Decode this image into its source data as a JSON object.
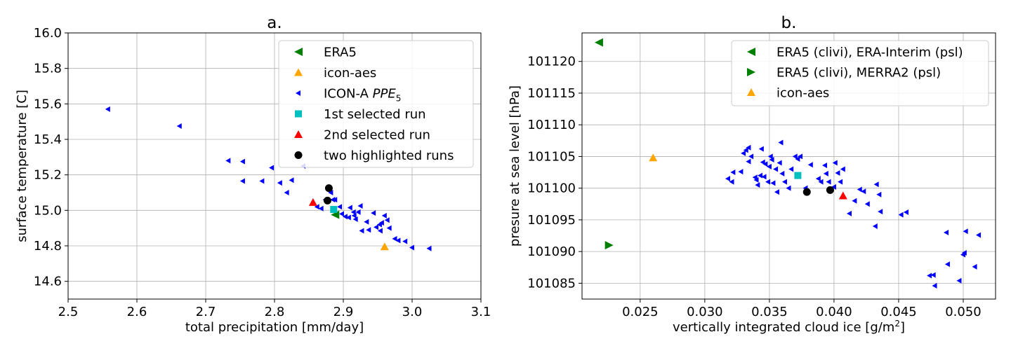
{
  "chart_data": [
    {
      "type": "scatter",
      "title": "a.",
      "xlabel": "total precipitation [mm/day]",
      "ylabel": "surface temperature [C]",
      "xlim": [
        2.5,
        3.1
      ],
      "ylim": [
        14.5,
        16.0
      ],
      "xticks": [
        "2.5",
        "2.6",
        "2.7",
        "2.8",
        "2.9",
        "3.0",
        "3.1"
      ],
      "yticks": [
        "14.6",
        "14.8",
        "15.0",
        "15.2",
        "15.4",
        "15.6",
        "15.8",
        "16.0"
      ],
      "grid": true,
      "legend_position": "upper-right",
      "series": [
        {
          "name": "ICON-A PPE",
          "name_sub": "5",
          "marker": "triangle-left-small",
          "color": "#0000ff",
          "points": [
            [
              2.558,
              15.57
            ],
            [
              2.662,
              15.475
            ],
            [
              2.733,
              15.28
            ],
            [
              2.754,
              15.275
            ],
            [
              2.754,
              15.165
            ],
            [
              2.782,
              15.165
            ],
            [
              2.796,
              15.24
            ],
            [
              2.808,
              15.155
            ],
            [
              2.818,
              15.1
            ],
            [
              2.825,
              15.17
            ],
            [
              2.842,
              15.25
            ],
            [
              2.862,
              15.02
            ],
            [
              2.868,
              15.01
            ],
            [
              2.874,
              15.06
            ],
            [
              2.882,
              15.1
            ],
            [
              2.885,
              15.06
            ],
            [
              2.888,
              15.06
            ],
            [
              2.895,
              15.02
            ],
            [
              2.898,
              14.98
            ],
            [
              2.903,
              14.965
            ],
            [
              2.908,
              14.96
            ],
            [
              2.91,
              15.015
            ],
            [
              2.915,
              14.99
            ],
            [
              2.916,
              14.97
            ],
            [
              2.918,
              14.95
            ],
            [
              2.922,
              14.99
            ],
            [
              2.925,
              15.025
            ],
            [
              2.927,
              14.885
            ],
            [
              2.934,
              14.935
            ],
            [
              2.937,
              14.89
            ],
            [
              2.944,
              14.985
            ],
            [
              2.948,
              14.905
            ],
            [
              2.953,
              14.92
            ],
            [
              2.954,
              14.885
            ],
            [
              2.956,
              14.93
            ],
            [
              2.96,
              14.97
            ],
            [
              2.964,
              14.945
            ],
            [
              2.967,
              14.9
            ],
            [
              2.975,
              14.84
            ],
            [
              2.98,
              14.83
            ],
            [
              2.99,
              14.825
            ],
            [
              3.0,
              14.79
            ],
            [
              3.025,
              14.785
            ]
          ]
        },
        {
          "name": "ERA5",
          "marker": "triangle-left",
          "color": "#008000",
          "points": [
            [
              2.888,
              14.975
            ]
          ]
        },
        {
          "name": "icon-aes",
          "marker": "triangle-up",
          "color": "#ffa500",
          "points": [
            [
              2.96,
              14.795
            ]
          ]
        },
        {
          "name": "1st selected run",
          "marker": "square",
          "color": "#00bfbf",
          "points": [
            [
              2.886,
              15.005
            ]
          ]
        },
        {
          "name": "2nd selected run",
          "marker": "triangle-up",
          "color": "#ff0000",
          "points": [
            [
              2.856,
              15.045
            ]
          ]
        },
        {
          "name": "two highlighted runs",
          "marker": "circle",
          "color": "#000000",
          "points": [
            [
              2.879,
              15.125
            ],
            [
              2.877,
              15.055
            ]
          ]
        }
      ],
      "legend_order": [
        "ERA5",
        "icon-aes",
        "ICON-A PPE",
        "1st selected run",
        "2nd selected run",
        "two highlighted runs"
      ]
    },
    {
      "type": "scatter",
      "title": "b.",
      "xlabel": "vertically integrated cloud ice [g/m",
      "xlabel_sup": "2",
      "xlabel_end": "]",
      "ylabel": "presure at sea level [hPa]",
      "xlim": [
        0.0205,
        0.0525
      ],
      "ylim": [
        101082.5,
        101124.5
      ],
      "xticks": [
        "0.025",
        "0.030",
        "0.035",
        "0.040",
        "0.045",
        "0.050"
      ],
      "xtick_values": [
        0.025,
        0.03,
        0.035,
        0.04,
        0.045,
        0.05
      ],
      "yticks": [
        "101085",
        "101090",
        "101095",
        "101100",
        "101105",
        "101110",
        "101115",
        "101120"
      ],
      "ytick_values": [
        101085,
        101090,
        101095,
        101100,
        101105,
        101110,
        101115,
        101120
      ],
      "grid": true,
      "legend_position": "upper-right",
      "series": [
        {
          "name": "ICON-A PPE5",
          "in_legend": false,
          "marker": "triangle-left-small",
          "color": "#0000ff",
          "points": [
            [
              0.0318,
              101101.5
            ],
            [
              0.0321,
              101101.0
            ],
            [
              0.0322,
              101102.5
            ],
            [
              0.0328,
              101102.6
            ],
            [
              0.033,
              101105.5
            ],
            [
              0.0332,
              101106.0
            ],
            [
              0.0334,
              101106.4
            ],
            [
              0.0334,
              101104.2
            ],
            [
              0.0336,
              101105.0
            ],
            [
              0.0339,
              101101.7
            ],
            [
              0.034,
              101101.3
            ],
            [
              0.0341,
              101100.5
            ],
            [
              0.0343,
              101102.0
            ],
            [
              0.0344,
              101106.2
            ],
            [
              0.0345,
              101104.1
            ],
            [
              0.0346,
              101101.8
            ],
            [
              0.0347,
              101103.8
            ],
            [
              0.0349,
              101101.0
            ],
            [
              0.035,
              101103.4
            ],
            [
              0.0351,
              101105.0
            ],
            [
              0.0352,
              101104.5
            ],
            [
              0.0353,
              101100.8
            ],
            [
              0.0355,
              101103.0
            ],
            [
              0.0356,
              101099.4
            ],
            [
              0.0358,
              101104.0
            ],
            [
              0.0359,
              101107.2
            ],
            [
              0.036,
              101102.3
            ],
            [
              0.0362,
              101101.0
            ],
            [
              0.0365,
              101100.0
            ],
            [
              0.0367,
              101103.0
            ],
            [
              0.037,
              101105.0
            ],
            [
              0.0372,
              101104.6
            ],
            [
              0.0374,
              101105.0
            ],
            [
              0.0378,
              101100.0
            ],
            [
              0.0382,
              101103.7
            ],
            [
              0.0388,
              101101.5
            ],
            [
              0.039,
              101101.0
            ],
            [
              0.0393,
              101103.6
            ],
            [
              0.0394,
              101102.3
            ],
            [
              0.0396,
              101101.0
            ],
            [
              0.04,
              101100.2
            ],
            [
              0.0401,
              101104.0
            ],
            [
              0.0403,
              101102.4
            ],
            [
              0.0405,
              101101.0
            ],
            [
              0.0407,
              101103.0
            ],
            [
              0.0412,
              101096.0
            ],
            [
              0.0416,
              101098.0
            ],
            [
              0.042,
              101099.8
            ],
            [
              0.0423,
              101099.5
            ],
            [
              0.0426,
              101097.5
            ],
            [
              0.0432,
              101094.0
            ],
            [
              0.0433,
              101100.6
            ],
            [
              0.0435,
              101099.0
            ],
            [
              0.0436,
              101096.3
            ],
            [
              0.0452,
              101095.8
            ],
            [
              0.0456,
              101096.2
            ],
            [
              0.0474,
              101086.2
            ],
            [
              0.0477,
              101086.3
            ],
            [
              0.0478,
              101084.6
            ],
            [
              0.0487,
              101093.0
            ],
            [
              0.0488,
              101088.0
            ],
            [
              0.0497,
              101085.4
            ],
            [
              0.05,
              101089.5
            ],
            [
              0.0501,
              101089.8
            ],
            [
              0.0502,
              101093.2
            ],
            [
              0.0509,
              101087.6
            ],
            [
              0.0512,
              101092.6
            ]
          ]
        },
        {
          "name": "ERA5 (clivi), ERA-Interim (psl)",
          "marker": "triangle-left",
          "color": "#008000",
          "points": [
            [
              0.0218,
              101123.0
            ]
          ]
        },
        {
          "name": "ERA5 (clivi), MERRA2 (psl)",
          "marker": "triangle-right",
          "color": "#008000",
          "points": [
            [
              0.0226,
              101091.0
            ]
          ]
        },
        {
          "name": "icon-aes",
          "marker": "triangle-up",
          "color": "#ffa500",
          "points": [
            [
              0.026,
              101104.8
            ]
          ]
        },
        {
          "name": "1st selected run",
          "in_legend": false,
          "marker": "square",
          "color": "#00bfbf",
          "points": [
            [
              0.0372,
              101102.0
            ]
          ]
        },
        {
          "name": "2nd selected run",
          "in_legend": false,
          "marker": "triangle-up",
          "color": "#ff0000",
          "points": [
            [
              0.0407,
              101098.8
            ]
          ]
        },
        {
          "name": "two highlighted runs",
          "in_legend": false,
          "marker": "circle",
          "color": "#000000",
          "points": [
            [
              0.0379,
              101099.4
            ],
            [
              0.0397,
              101099.7
            ]
          ]
        }
      ],
      "legend_order": [
        "ERA5 (clivi), ERA-Interim (psl)",
        "ERA5 (clivi), MERRA2 (psl)",
        "icon-aes"
      ]
    }
  ]
}
